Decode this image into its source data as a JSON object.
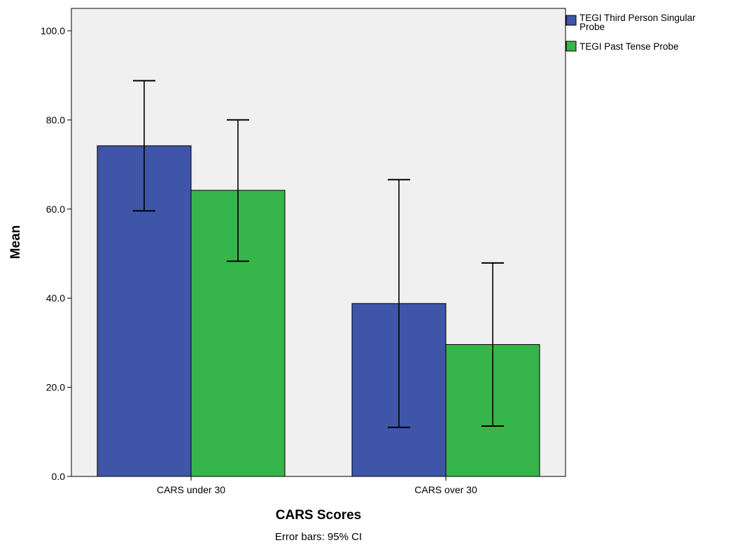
{
  "chart_data": {
    "type": "bar",
    "xlabel": "CARS Scores",
    "ylabel": "Mean",
    "ylim": [
      0,
      100
    ],
    "yticks": [
      "0.0",
      "20.0",
      "40.0",
      "60.0",
      "80.0",
      "100.0"
    ],
    "categories": [
      "CARS under 30",
      "CARS over 30"
    ],
    "series": [
      {
        "name": "TEGI Third Person Singular Probe",
        "values": [
          74.2,
          38.8
        ],
        "ci_low": [
          59.6,
          11.0
        ],
        "ci_high": [
          88.8,
          66.6
        ],
        "color": "#3e55a8"
      },
      {
        "name": "TEGI Past Tense Probe",
        "values": [
          64.2,
          29.6
        ],
        "ci_low": [
          48.3,
          11.3
        ],
        "ci_high": [
          80.0,
          47.9
        ],
        "color": "#36b54a"
      }
    ],
    "legend_position": "top-right",
    "grid": false,
    "plot_background": "#f0f0f0",
    "footnote": "Error bars: 95% CI"
  }
}
